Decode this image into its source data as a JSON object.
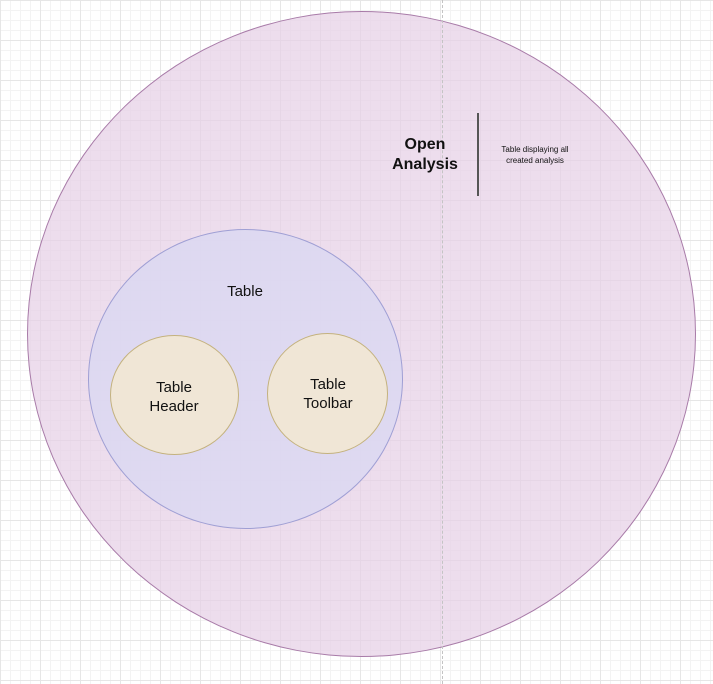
{
  "diagram": {
    "root": {
      "title": "Open\nAnalysis",
      "description": "Table displaying all\ncreated analysis",
      "fill": "#e6d0e6",
      "stroke": "#a87ba8"
    },
    "table": {
      "label": "Table",
      "fill": "#dad8f2",
      "stroke": "#9f9fd4"
    },
    "children": [
      {
        "label": "Table\nHeader",
        "fill": "#f0e6d6",
        "stroke": "#c4b27e"
      },
      {
        "label": "Table\nToolbar",
        "fill": "#f0e6d6",
        "stroke": "#c4b27e"
      }
    ]
  }
}
